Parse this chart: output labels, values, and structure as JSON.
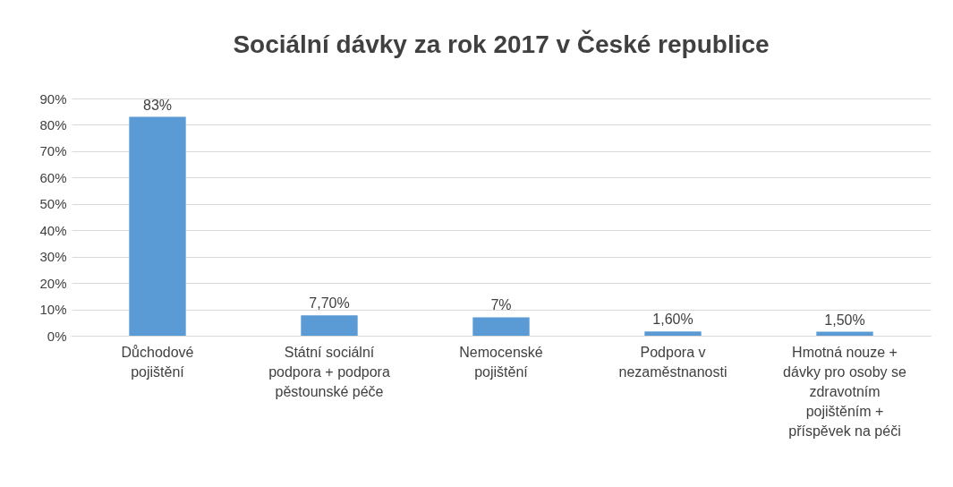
{
  "chart_data": {
    "type": "bar",
    "title": "Sociální dávky za rok 2017 v České republice",
    "categories": [
      "Důchodové pojištění",
      "Státní sociální podpora + podpora pěstounské péče",
      "Nemocenské pojištění",
      "Podpora v nezaměstnanosti",
      "Hmotná nouze + dávky pro osoby se zdravotním pojištěním + příspěvek na péči"
    ],
    "values": [
      83,
      7.7,
      7,
      1.6,
      1.5
    ],
    "value_labels": [
      "83%",
      "7,70%",
      "7%",
      "1,60%",
      "1,50%"
    ],
    "color": "#5b9bd5",
    "ylim": [
      0,
      90
    ],
    "yticks": [
      {
        "value": 0,
        "label": "0%"
      },
      {
        "value": 10,
        "label": "10%"
      },
      {
        "value": 20,
        "label": "20%"
      },
      {
        "value": 30,
        "label": "30%"
      },
      {
        "value": 40,
        "label": "40%"
      },
      {
        "value": 50,
        "label": "50%"
      },
      {
        "value": 60,
        "label": "60%"
      },
      {
        "value": 70,
        "label": "70%"
      },
      {
        "value": 80,
        "label": "80%"
      },
      {
        "value": 90,
        "label": "90%"
      }
    ],
    "grid": "y"
  }
}
